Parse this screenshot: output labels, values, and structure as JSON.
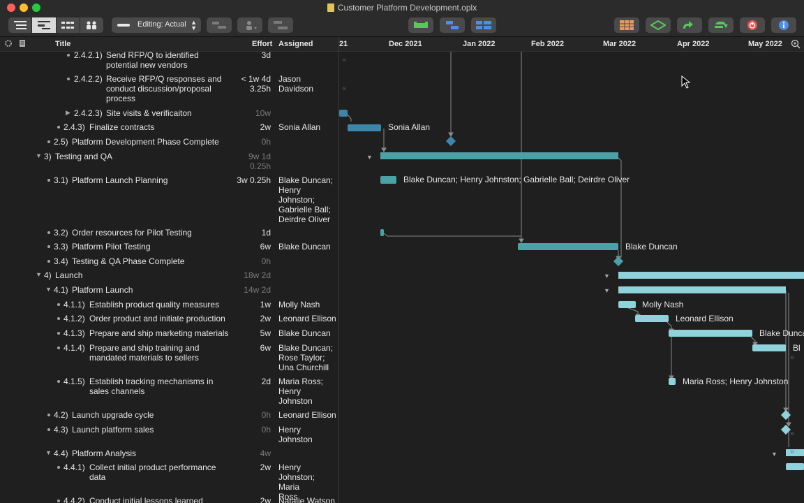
{
  "window": {
    "title": "Customer Platform Development.oplx"
  },
  "toolbar": {
    "view_modes": [
      "outline-view",
      "gantt-view",
      "network-view",
      "resource-view"
    ],
    "editing_label": "Editing: Actual",
    "icons": [
      "connect-icon",
      "resource-assign-icon",
      "baseline-icon",
      "critical-path-icon",
      "level-icon",
      "slip-icon",
      "table-icon",
      "split-icon",
      "publish-icon",
      "sync-icon",
      "stop-icon",
      "info-icon"
    ],
    "colors": {
      "green": "#58c85a",
      "blue": "#4d8ee8",
      "red": "#f05050",
      "orange": "#e89a5a"
    }
  },
  "header": {
    "title": "Title",
    "effort": "Effort",
    "assigned": "Assigned",
    "months": [
      "21",
      "Dec 2021",
      "Jan 2022",
      "Feb 2022",
      "Mar 2022",
      "Apr 2022",
      "May 2022"
    ]
  },
  "rows": [
    {
      "num": "2.4.2.1)",
      "title": "Send RFP/Q to identified potential new vendors",
      "effort": "3d",
      "assigned": ""
    },
    {
      "num": "2.4.2.2)",
      "title": "Receive RFP/Q responses and conduct discussion/proposal process",
      "effort": "< 1w 4d 3.25h",
      "assigned": "Jason Davidson"
    },
    {
      "num": "2.4.2.3)",
      "title": "Site visits & verificaiton",
      "effort": "10w",
      "assigned": ""
    },
    {
      "num": "2.4.3)",
      "title": "Finalize contracts",
      "effort": "2w",
      "assigned": "Sonia Allan"
    },
    {
      "num": "2.5)",
      "title": "Platform Development Phase Complete",
      "effort": "0h",
      "assigned": ""
    },
    {
      "num": "3)",
      "title": "Testing and QA",
      "effort": "9w 1d 0.25h",
      "assigned": ""
    },
    {
      "num": "3.1)",
      "title": "Platform Launch Planning",
      "effort": "3w 0.25h",
      "assigned": "Blake Duncan; Henry Johnston; Gabrielle Ball; Deirdre Oliver"
    },
    {
      "num": "3.2)",
      "title": "Order resources for Pilot Testing",
      "effort": "1d",
      "assigned": ""
    },
    {
      "num": "3.3)",
      "title": "Platform Pilot Testing",
      "effort": "6w",
      "assigned": "Blake Duncan"
    },
    {
      "num": "3.4)",
      "title": "Testing & QA Phase Complete",
      "effort": "0h",
      "assigned": ""
    },
    {
      "num": "4)",
      "title": "Launch",
      "effort": "18w 2d",
      "assigned": ""
    },
    {
      "num": "4.1)",
      "title": "Platform Launch",
      "effort": "14w 2d",
      "assigned": ""
    },
    {
      "num": "4.1.1)",
      "title": "Establish product quality measures",
      "effort": "1w",
      "assigned": "Molly Nash"
    },
    {
      "num": "4.1.2)",
      "title": "Order product and initiate production",
      "effort": "2w",
      "assigned": "Leonard Ellison"
    },
    {
      "num": "4.1.3)",
      "title": "Prepare and ship marketing materials",
      "effort": "5w",
      "assigned": "Blake Duncan"
    },
    {
      "num": "4.1.4)",
      "title": "Prepare and ship training and mandated materials to sellers",
      "effort": "6w",
      "assigned": "Blake Duncan; Rose Taylor; Una Churchill"
    },
    {
      "num": "4.1.5)",
      "title": "Establish tracking mechanisms in sales channels",
      "effort": "2d",
      "assigned": "Maria Ross; Henry Johnston"
    },
    {
      "num": "4.2)",
      "title": "Launch upgrade cycle",
      "effort": "0h",
      "assigned": "Leonard Ellison"
    },
    {
      "num": "4.3)",
      "title": "Launch platform sales",
      "effort": "0h",
      "assigned": "Henry Johnston"
    },
    {
      "num": "4.4)",
      "title": "Platform Analysis",
      "effort": "4w",
      "assigned": ""
    },
    {
      "num": "4.4.1)",
      "title": "Collect initial product performance data",
      "effort": "2w",
      "assigned": "Henry Johnston; Maria Ross"
    },
    {
      "num": "4.4.2)",
      "title": "Conduct initial lessons learned",
      "effort": "2w",
      "assigned": "Natalie Watson"
    }
  ],
  "gantt_labels": {
    "finalize": "Sonia Allan",
    "planning": "Blake Duncan; Henry Johnston; Gabrielle Ball; Deirdre Oliver",
    "pilot": "Blake Duncan",
    "quality": "Molly Nash",
    "order": "Leonard Ellison",
    "marketing": "Blake Dunca",
    "training": "Bl",
    "tracking": "Maria Ross; Henry Johnston"
  }
}
